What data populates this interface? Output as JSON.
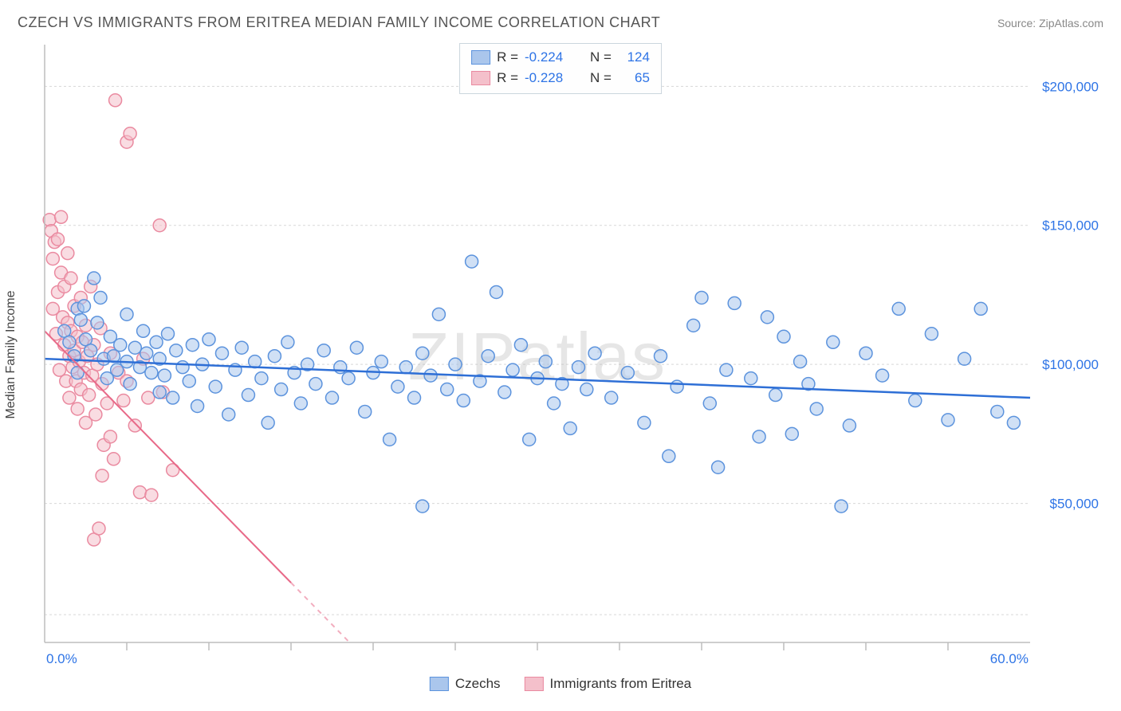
{
  "title": "CZECH VS IMMIGRANTS FROM ERITREA MEDIAN FAMILY INCOME CORRELATION CHART",
  "source_label": "Source: ",
  "source_name": "ZipAtlas.com",
  "ylabel": "Median Family Income",
  "watermark": "ZIPatlas",
  "chart": {
    "type": "scatter",
    "xlim": [
      0,
      60
    ],
    "ylim": [
      0,
      215000
    ],
    "xticks_major": [
      0,
      60
    ],
    "xtick_labels": {
      "0": "0.0%",
      "60": "60.0%"
    },
    "xticks_minor": [
      5,
      10,
      15,
      20,
      25,
      30,
      35,
      40,
      45,
      50,
      55
    ],
    "yticks": [
      50000,
      100000,
      150000,
      200000
    ],
    "ytick_labels": {
      "50000": "$50,000",
      "100000": "$100,000",
      "150000": "$150,000",
      "200000": "$200,000"
    },
    "grid_y": [
      10000,
      50000,
      100000,
      150000,
      200000
    ],
    "background_color": "#ffffff",
    "grid_color": "#d8d8d8",
    "axis_color": "#bdbdbd",
    "marker_radius": 8,
    "marker_stroke_width": 1.5,
    "marker_opacity": 0.55
  },
  "series": [
    {
      "name": "Czechs",
      "color_fill": "#aac6ec",
      "color_stroke": "#5c93dd",
      "trend": {
        "y_at_x0": 102000,
        "y_at_x60": 88000,
        "line_color": "#2e6fd6",
        "line_width": 2.5
      },
      "stats_r": "-0.224",
      "stats_n": "124",
      "points": [
        [
          1.2,
          112000
        ],
        [
          1.5,
          108000
        ],
        [
          1.8,
          103000
        ],
        [
          2.0,
          120000
        ],
        [
          2.0,
          97000
        ],
        [
          2.2,
          116000
        ],
        [
          2.4,
          121000
        ],
        [
          2.5,
          109000
        ],
        [
          2.8,
          105000
        ],
        [
          3.0,
          131000
        ],
        [
          3.2,
          115000
        ],
        [
          3.4,
          124000
        ],
        [
          3.6,
          102000
        ],
        [
          3.8,
          95000
        ],
        [
          4.0,
          110000
        ],
        [
          4.2,
          103000
        ],
        [
          4.4,
          98000
        ],
        [
          4.6,
          107000
        ],
        [
          5.0,
          118000
        ],
        [
          5.0,
          101000
        ],
        [
          5.2,
          93000
        ],
        [
          5.5,
          106000
        ],
        [
          5.8,
          99000
        ],
        [
          6.0,
          112000
        ],
        [
          6.2,
          104000
        ],
        [
          6.5,
          97000
        ],
        [
          6.8,
          108000
        ],
        [
          7.0,
          90000
        ],
        [
          7.0,
          102000
        ],
        [
          7.3,
          96000
        ],
        [
          7.5,
          111000
        ],
        [
          7.8,
          88000
        ],
        [
          8.0,
          105000
        ],
        [
          8.4,
          99000
        ],
        [
          8.8,
          94000
        ],
        [
          9.0,
          107000
        ],
        [
          9.3,
          85000
        ],
        [
          9.6,
          100000
        ],
        [
          10.0,
          109000
        ],
        [
          10.4,
          92000
        ],
        [
          10.8,
          104000
        ],
        [
          11.2,
          82000
        ],
        [
          11.6,
          98000
        ],
        [
          12.0,
          106000
        ],
        [
          12.4,
          89000
        ],
        [
          12.8,
          101000
        ],
        [
          13.2,
          95000
        ],
        [
          13.6,
          79000
        ],
        [
          14.0,
          103000
        ],
        [
          14.4,
          91000
        ],
        [
          14.8,
          108000
        ],
        [
          15.2,
          97000
        ],
        [
          15.6,
          86000
        ],
        [
          16.0,
          100000
        ],
        [
          16.5,
          93000
        ],
        [
          17.0,
          105000
        ],
        [
          17.5,
          88000
        ],
        [
          18.0,
          99000
        ],
        [
          18.5,
          95000
        ],
        [
          19.0,
          106000
        ],
        [
          19.5,
          83000
        ],
        [
          20.0,
          97000
        ],
        [
          20.5,
          101000
        ],
        [
          21.0,
          73000
        ],
        [
          21.5,
          92000
        ],
        [
          22.0,
          99000
        ],
        [
          22.5,
          88000
        ],
        [
          23.0,
          104000
        ],
        [
          23.0,
          49000
        ],
        [
          23.5,
          96000
        ],
        [
          24.0,
          118000
        ],
        [
          24.5,
          91000
        ],
        [
          25.0,
          100000
        ],
        [
          25.5,
          87000
        ],
        [
          26.0,
          137000
        ],
        [
          26.5,
          94000
        ],
        [
          27.0,
          103000
        ],
        [
          27.5,
          126000
        ],
        [
          28.0,
          90000
        ],
        [
          28.5,
          98000
        ],
        [
          29.0,
          107000
        ],
        [
          29.5,
          73000
        ],
        [
          30.0,
          95000
        ],
        [
          30.5,
          101000
        ],
        [
          31.0,
          86000
        ],
        [
          31.5,
          93000
        ],
        [
          32.0,
          77000
        ],
        [
          32.5,
          99000
        ],
        [
          33.0,
          91000
        ],
        [
          33.5,
          104000
        ],
        [
          34.5,
          88000
        ],
        [
          35.5,
          97000
        ],
        [
          36.5,
          79000
        ],
        [
          37.5,
          103000
        ],
        [
          38.0,
          67000
        ],
        [
          38.5,
          92000
        ],
        [
          39.5,
          114000
        ],
        [
          40.0,
          124000
        ],
        [
          40.5,
          86000
        ],
        [
          41.0,
          63000
        ],
        [
          41.5,
          98000
        ],
        [
          42.0,
          122000
        ],
        [
          43.0,
          95000
        ],
        [
          43.5,
          74000
        ],
        [
          44.0,
          117000
        ],
        [
          44.5,
          89000
        ],
        [
          45.0,
          110000
        ],
        [
          45.5,
          75000
        ],
        [
          46.0,
          101000
        ],
        [
          46.5,
          93000
        ],
        [
          47.0,
          84000
        ],
        [
          48.0,
          108000
        ],
        [
          48.5,
          49000
        ],
        [
          49.0,
          78000
        ],
        [
          50.0,
          104000
        ],
        [
          51.0,
          96000
        ],
        [
          52.0,
          120000
        ],
        [
          53.0,
          87000
        ],
        [
          54.0,
          111000
        ],
        [
          55.0,
          80000
        ],
        [
          56.0,
          102000
        ],
        [
          57.0,
          120000
        ],
        [
          58.0,
          83000
        ],
        [
          59.0,
          79000
        ]
      ]
    },
    {
      "name": "Immigrants from Eritrea",
      "color_fill": "#f4c0cb",
      "color_stroke": "#ea8aa0",
      "trend": {
        "y_at_x0": 112000,
        "y_at_x60": -250000,
        "line_color": "#e86988",
        "line_width": 2,
        "dash_after_x": 15
      },
      "stats_r": "-0.228",
      "stats_n": "65",
      "points": [
        [
          0.3,
          152000
        ],
        [
          0.4,
          148000
        ],
        [
          0.5,
          120000
        ],
        [
          0.5,
          138000
        ],
        [
          0.6,
          144000
        ],
        [
          0.7,
          111000
        ],
        [
          0.8,
          126000
        ],
        [
          0.8,
          145000
        ],
        [
          0.9,
          98000
        ],
        [
          1.0,
          133000
        ],
        [
          1.0,
          153000
        ],
        [
          1.1,
          117000
        ],
        [
          1.2,
          107000
        ],
        [
          1.2,
          128000
        ],
        [
          1.3,
          94000
        ],
        [
          1.4,
          140000
        ],
        [
          1.4,
          115000
        ],
        [
          1.5,
          103000
        ],
        [
          1.5,
          88000
        ],
        [
          1.6,
          112000
        ],
        [
          1.6,
          131000
        ],
        [
          1.7,
          99000
        ],
        [
          1.8,
          105000
        ],
        [
          1.8,
          121000
        ],
        [
          1.9,
          94000
        ],
        [
          2.0,
          110000
        ],
        [
          2.0,
          84000
        ],
        [
          2.1,
          101000
        ],
        [
          2.2,
          124000
        ],
        [
          2.2,
          91000
        ],
        [
          2.3,
          108000
        ],
        [
          2.4,
          97000
        ],
        [
          2.5,
          79000
        ],
        [
          2.5,
          114000
        ],
        [
          2.6,
          103000
        ],
        [
          2.7,
          89000
        ],
        [
          2.8,
          128000
        ],
        [
          2.9,
          96000
        ],
        [
          3.0,
          37000
        ],
        [
          3.0,
          107000
        ],
        [
          3.1,
          82000
        ],
        [
          3.2,
          100000
        ],
        [
          3.3,
          41000
        ],
        [
          3.4,
          113000
        ],
        [
          3.5,
          93000
        ],
        [
          3.5,
          60000
        ],
        [
          3.6,
          71000
        ],
        [
          3.8,
          86000
        ],
        [
          4.0,
          104000
        ],
        [
          4.0,
          74000
        ],
        [
          4.2,
          66000
        ],
        [
          4.3,
          195000
        ],
        [
          4.5,
          97000
        ],
        [
          4.8,
          87000
        ],
        [
          5.0,
          180000
        ],
        [
          5.0,
          94000
        ],
        [
          5.2,
          183000
        ],
        [
          5.5,
          78000
        ],
        [
          5.8,
          54000
        ],
        [
          6.0,
          102000
        ],
        [
          6.3,
          88000
        ],
        [
          6.5,
          53000
        ],
        [
          7.0,
          150000
        ],
        [
          7.2,
          90000
        ],
        [
          7.8,
          62000
        ]
      ]
    }
  ],
  "legend": {
    "r_label": "R =",
    "n_label": "N ="
  }
}
